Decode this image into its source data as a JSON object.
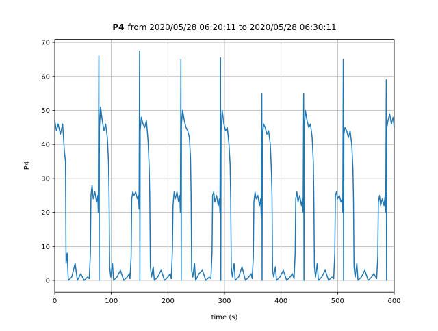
{
  "chart_data": {
    "type": "line",
    "title": {
      "variable": "P4",
      "text": "from 2020/05/28 06:20:11 to 2020/05/28 06:30:11"
    },
    "x_label": "time (s)",
    "y_label": "P4",
    "xlim": [
      0,
      600
    ],
    "xticks": [
      0,
      100,
      200,
      300,
      400,
      500,
      600
    ],
    "ylim": [
      -3.46,
      70.9
    ],
    "yticks": [
      0,
      10,
      20,
      30,
      40,
      50,
      60,
      70
    ],
    "grid": true,
    "x": [
      0,
      3,
      6,
      10,
      14,
      17,
      19,
      20,
      22,
      24,
      30,
      36,
      40,
      46,
      52,
      58,
      61,
      63,
      64,
      66,
      68,
      71,
      74,
      76,
      77,
      78,
      78.5,
      79,
      81,
      84,
      87,
      90,
      93,
      95,
      96,
      97,
      99,
      102,
      104,
      110,
      116,
      122,
      128,
      132,
      133,
      135,
      136,
      138,
      140,
      143,
      146,
      148,
      149,
      150,
      150.5,
      151,
      153,
      156,
      159,
      162,
      165,
      167,
      168,
      169,
      171,
      174,
      176,
      182,
      188,
      194,
      200,
      204,
      206,
      208,
      209,
      211,
      213,
      216,
      219,
      221,
      222,
      223,
      223.5,
      224,
      226,
      229,
      232,
      235,
      238,
      240,
      241,
      242,
      244,
      247,
      249,
      255,
      261,
      267,
      273,
      276,
      278,
      279,
      281,
      283,
      286,
      289,
      291,
      292,
      293,
      293.5,
      294,
      296,
      299,
      302,
      305,
      308,
      310,
      311,
      312,
      314,
      317,
      319,
      325,
      331,
      337,
      343,
      347,
      349,
      351,
      352,
      354,
      356,
      359,
      362,
      364,
      365,
      366,
      366.5,
      367,
      369,
      372,
      375,
      378,
      381,
      383,
      384,
      385,
      387,
      390,
      392,
      398,
      404,
      410,
      416,
      420,
      423,
      425,
      426,
      428,
      430,
      433,
      436,
      438,
      439,
      440,
      440.5,
      441,
      443,
      446,
      449,
      452,
      455,
      457,
      458,
      459,
      461,
      464,
      466,
      472,
      478,
      484,
      490,
      493,
      495,
      496,
      498,
      500,
      503,
      506,
      508,
      509,
      510,
      510.5,
      511,
      513,
      516,
      519,
      522,
      525,
      527,
      528,
      529,
      531,
      534,
      536,
      542,
      548,
      554,
      560,
      564,
      569,
      571,
      572,
      574,
      576,
      579,
      582,
      584,
      585,
      586,
      586.5,
      587,
      589,
      592,
      595,
      598,
      600
    ],
    "series": [
      {
        "name": "P4",
        "color": "#1f77b4",
        "values": [
          47,
          44,
          46,
          43,
          46,
          38,
          35,
          5,
          8,
          0,
          1,
          5,
          0,
          2,
          0,
          1,
          0.5,
          8,
          25,
          28,
          24,
          26,
          23,
          25,
          20,
          66,
          0,
          45,
          51,
          47,
          44,
          46,
          42,
          35,
          25,
          4,
          1,
          5,
          0,
          1,
          3,
          0,
          1,
          2,
          0.5,
          7,
          24,
          26,
          25,
          26,
          24,
          25,
          21,
          67.5,
          0,
          44,
          48,
          46,
          45,
          47,
          41,
          33,
          24,
          4,
          1,
          4,
          0,
          1,
          3,
          0,
          1,
          2,
          0.5,
          9,
          22,
          26,
          24,
          26,
          23,
          25,
          20,
          65,
          0,
          46,
          50,
          47,
          45,
          44,
          42,
          36,
          25,
          3,
          1,
          5,
          0,
          2,
          3,
          0,
          1,
          0.5,
          8,
          25,
          26,
          23,
          25,
          22,
          24,
          20,
          65.5,
          0,
          44,
          50,
          46,
          44,
          45,
          40,
          34,
          24,
          4,
          1,
          5,
          0,
          1,
          4,
          0,
          1,
          2,
          0.5,
          7,
          23,
          26,
          24,
          25,
          22,
          24,
          19,
          55,
          0,
          42,
          46,
          45,
          43,
          44,
          40,
          32,
          25,
          3,
          1,
          4,
          0,
          1,
          3,
          0,
          1,
          2,
          0.5,
          8,
          24,
          26,
          23,
          25,
          22,
          24,
          20,
          55,
          0,
          44,
          50,
          47,
          45,
          46,
          42,
          35,
          24,
          4,
          1,
          5,
          0,
          1,
          3,
          0,
          1,
          0.5,
          8,
          25,
          26,
          24,
          25,
          23,
          24,
          20,
          65,
          0,
          43,
          45,
          44,
          42,
          44,
          40,
          33,
          24,
          4,
          1,
          5,
          0,
          1,
          3,
          0,
          1,
          2,
          0.5,
          7,
          23,
          25,
          22,
          24,
          22,
          25,
          20,
          59,
          0,
          45,
          47,
          49,
          46,
          48,
          45
        ]
      }
    ]
  }
}
